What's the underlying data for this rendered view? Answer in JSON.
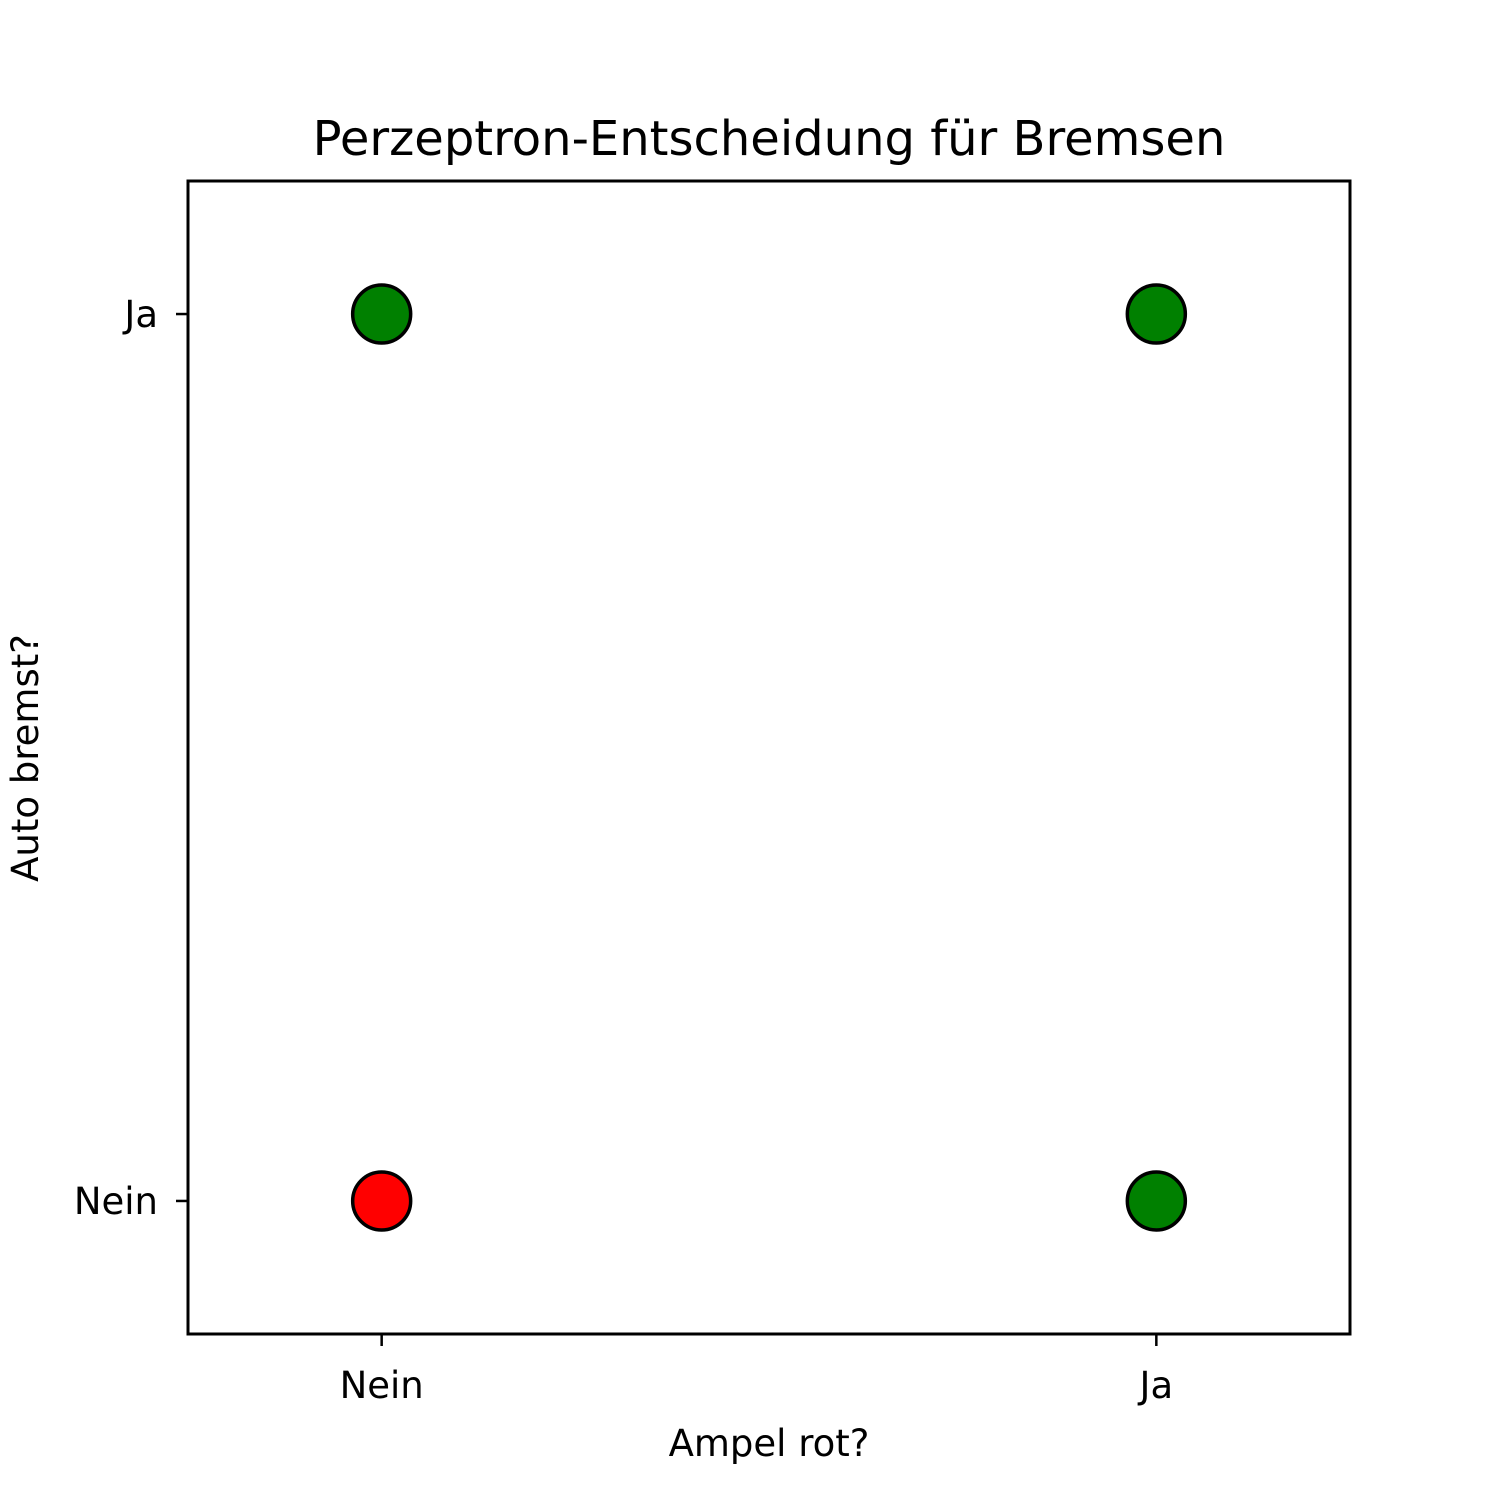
{
  "chart_data": {
    "type": "scatter",
    "title": "Perzeptron-Entscheidung für Bremsen",
    "xlabel": "Ampel rot?",
    "ylabel": "Auto bremst?",
    "x_ticks": [
      {
        "value": 0,
        "label": "Nein"
      },
      {
        "value": 1,
        "label": "Ja"
      }
    ],
    "y_ticks": [
      {
        "value": 0,
        "label": "Nein"
      },
      {
        "value": 1,
        "label": "Ja"
      }
    ],
    "xlim": [
      -0.25,
      1.25
    ],
    "ylim": [
      -0.15,
      1.15
    ],
    "points": [
      {
        "x": 0,
        "y": 0,
        "color": "#ff0000"
      },
      {
        "x": 0,
        "y": 1,
        "color": "#008000"
      },
      {
        "x": 1,
        "y": 0,
        "color": "#008000"
      },
      {
        "x": 1,
        "y": 1,
        "color": "#008000"
      }
    ],
    "marker_edge_color": "#000000",
    "grid": false,
    "legend": "none"
  }
}
